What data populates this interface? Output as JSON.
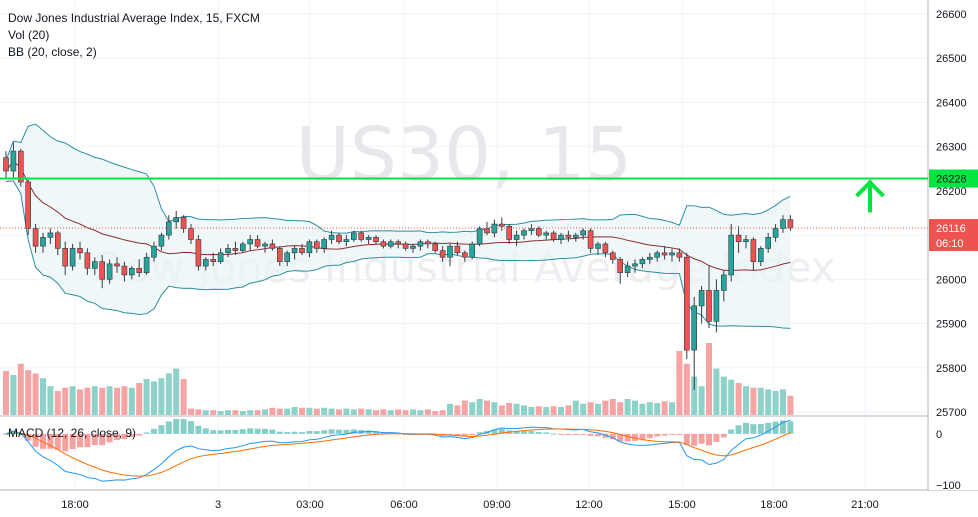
{
  "legend": {
    "title": "Dow Jones Industrial Average Index, 15, FXCM",
    "vol": "Vol (20)",
    "bb": "BB (20, close, 2)",
    "macd": "MACD (12, 26, close, 9)"
  },
  "watermark": {
    "symbol": "US30, 15",
    "name": "Dow Jones Industrial Average Index"
  },
  "colors": {
    "up": "#26a69a",
    "down": "#ef5350",
    "hline": "#00e640",
    "bb_band": "#2b8fa0",
    "bb_mid": "#8b2d2d",
    "bb_fill": "#e8f4f5",
    "vol_up": "#8ed1c8",
    "vol_down": "#f5a3a3",
    "macd_line": "#2196f3",
    "signal_line": "#ff6d00",
    "arrow": "#00e640"
  },
  "chart_data": {
    "type": "candlestick",
    "yaxis": {
      "ticks": [
        "26600",
        "26500",
        "26400",
        "26300",
        "26200",
        "26100",
        "26000",
        "25900",
        "25800",
        "25700"
      ],
      "range": [
        25680,
        26630
      ]
    },
    "macd_axis": {
      "ticks": [
        "0",
        "−100"
      ],
      "range": [
        -110,
        35
      ]
    },
    "xaxis": {
      "ticks": [
        "18:00",
        "3",
        "03:00",
        "06:00",
        "09:00",
        "12:00",
        "15:00",
        "18:00",
        "21:00"
      ]
    },
    "hline": {
      "value": 26228,
      "label": "26228"
    },
    "last_price": {
      "value": 26116,
      "label": "26116",
      "countdown": "06:10"
    },
    "candles": [
      [
        26275,
        26290,
        26230,
        26245
      ],
      [
        26245,
        26310,
        26230,
        26290
      ],
      [
        26290,
        26295,
        26210,
        26220
      ],
      [
        26220,
        26225,
        26100,
        26115
      ],
      [
        26115,
        26125,
        26060,
        26075
      ],
      [
        26075,
        26105,
        26060,
        26095
      ],
      [
        26095,
        26115,
        26080,
        26105
      ],
      [
        26105,
        26110,
        26055,
        26070
      ],
      [
        26070,
        26085,
        26010,
        26030
      ],
      [
        26030,
        26080,
        26020,
        26070
      ],
      [
        26070,
        26085,
        26045,
        26060
      ],
      [
        26060,
        26070,
        26010,
        26025
      ],
      [
        26025,
        26050,
        26010,
        26040
      ],
      [
        26040,
        26055,
        25980,
        26000
      ],
      [
        26000,
        26045,
        25990,
        26035
      ],
      [
        26035,
        26050,
        26015,
        26030
      ],
      [
        26030,
        26040,
        25995,
        26010
      ],
      [
        26010,
        26030,
        26000,
        26025
      ],
      [
        26025,
        26045,
        26005,
        26015
      ],
      [
        26015,
        26060,
        26010,
        26050
      ],
      [
        26050,
        26085,
        26040,
        26075
      ],
      [
        26075,
        26105,
        26065,
        26100
      ],
      [
        26100,
        26145,
        26090,
        26130
      ],
      [
        26130,
        26155,
        26115,
        26140
      ],
      [
        26140,
        26145,
        26105,
        26115
      ],
      [
        26115,
        26125,
        26080,
        26090
      ],
      [
        26090,
        26100,
        26020,
        26030
      ],
      [
        26030,
        26050,
        26020,
        26045
      ],
      [
        26045,
        26060,
        26030,
        26040
      ],
      [
        26040,
        26070,
        26035,
        26060
      ],
      [
        26060,
        26080,
        26050,
        26070
      ],
      [
        26070,
        26085,
        26055,
        26065
      ],
      [
        26065,
        26085,
        26060,
        26080
      ],
      [
        26080,
        26100,
        26065,
        26090
      ],
      [
        26090,
        26100,
        26070,
        26075
      ],
      [
        26075,
        26085,
        26060,
        26080
      ],
      [
        26080,
        26090,
        26065,
        26070
      ],
      [
        26070,
        26075,
        26030,
        26040
      ],
      [
        26040,
        26065,
        26030,
        26060
      ],
      [
        26060,
        26075,
        26045,
        26070
      ],
      [
        26070,
        26080,
        26055,
        26060
      ],
      [
        26060,
        26090,
        26050,
        26085
      ],
      [
        26085,
        26090,
        26060,
        26070
      ],
      [
        26070,
        26095,
        26060,
        26090
      ],
      [
        26090,
        26110,
        26080,
        26100
      ],
      [
        26100,
        26105,
        26080,
        26085
      ],
      [
        26085,
        26100,
        26075,
        26090
      ],
      [
        26090,
        26110,
        26085,
        26105
      ],
      [
        26105,
        26110,
        26085,
        26090
      ],
      [
        26090,
        26100,
        26080,
        26095
      ],
      [
        26095,
        26100,
        26080,
        26085
      ],
      [
        26085,
        26090,
        26070,
        26075
      ],
      [
        26075,
        26090,
        26070,
        26085
      ],
      [
        26085,
        26090,
        26070,
        26080
      ],
      [
        26080,
        26085,
        26065,
        26070
      ],
      [
        26070,
        26080,
        26060,
        26075
      ],
      [
        26075,
        26090,
        26065,
        26085
      ],
      [
        26085,
        26090,
        26070,
        26080
      ],
      [
        26080,
        26085,
        26060,
        26065
      ],
      [
        26065,
        26075,
        26040,
        26050
      ],
      [
        26050,
        26080,
        26030,
        26075
      ],
      [
        26075,
        26085,
        26055,
        26060
      ],
      [
        26060,
        26065,
        26040,
        26050
      ],
      [
        26050,
        26085,
        26045,
        26080
      ],
      [
        26080,
        26120,
        26075,
        26115
      ],
      [
        26115,
        26130,
        26100,
        26105
      ],
      [
        26105,
        26135,
        26095,
        26125
      ],
      [
        26125,
        26140,
        26110,
        26120
      ],
      [
        26120,
        26125,
        26080,
        26090
      ],
      [
        26090,
        26110,
        26075,
        26100
      ],
      [
        26100,
        26115,
        26090,
        26110
      ],
      [
        26110,
        26125,
        26100,
        26115
      ],
      [
        26115,
        26120,
        26095,
        26100
      ],
      [
        26100,
        26110,
        26090,
        26105
      ],
      [
        26105,
        26110,
        26085,
        26090
      ],
      [
        26090,
        26105,
        26080,
        26100
      ],
      [
        26100,
        26110,
        26085,
        26095
      ],
      [
        26095,
        26105,
        26085,
        26100
      ],
      [
        26100,
        26115,
        26090,
        26110
      ],
      [
        26110,
        26115,
        26060,
        26070
      ],
      [
        26070,
        26085,
        26055,
        26080
      ],
      [
        26080,
        26085,
        26050,
        26060
      ],
      [
        26060,
        26065,
        26035,
        26045
      ],
      [
        26045,
        26050,
        25990,
        26015
      ],
      [
        26015,
        26040,
        26005,
        26030
      ],
      [
        26030,
        26045,
        26015,
        26035
      ],
      [
        26035,
        26050,
        26025,
        26045
      ],
      [
        26045,
        26060,
        26035,
        26050
      ],
      [
        26050,
        26065,
        26040,
        26060
      ],
      [
        26060,
        26075,
        26045,
        26055
      ],
      [
        26055,
        26070,
        26040,
        26060
      ],
      [
        26060,
        26070,
        26040,
        26050
      ],
      [
        26050,
        26060,
        25820,
        25840
      ],
      [
        25840,
        25960,
        25750,
        25940
      ],
      [
        25940,
        25985,
        25900,
        25975
      ],
      [
        25975,
        26030,
        25890,
        25905
      ],
      [
        25905,
        26000,
        25880,
        25975
      ],
      [
        25975,
        26020,
        25950,
        26010
      ],
      [
        26010,
        26125,
        25995,
        26100
      ],
      [
        26100,
        26120,
        26060,
        26085
      ],
      [
        26085,
        26100,
        26070,
        26090
      ],
      [
        26090,
        26095,
        26020,
        26040
      ],
      [
        26040,
        26075,
        26030,
        26070
      ],
      [
        26070,
        26105,
        26060,
        26095
      ],
      [
        26095,
        26125,
        26085,
        26115
      ],
      [
        26115,
        26145,
        26105,
        26135
      ],
      [
        26135,
        26145,
        26110,
        26116
      ]
    ],
    "volume": [
      0.55,
      0.5,
      0.64,
      0.56,
      0.52,
      0.46,
      0.36,
      0.3,
      0.34,
      0.36,
      0.32,
      0.34,
      0.36,
      0.34,
      0.36,
      0.34,
      0.36,
      0.34,
      0.4,
      0.45,
      0.42,
      0.46,
      0.52,
      0.58,
      0.45,
      0.08,
      0.07,
      0.06,
      0.06,
      0.05,
      0.06,
      0.06,
      0.05,
      0.06,
      0.06,
      0.07,
      0.09,
      0.08,
      0.08,
      0.1,
      0.09,
      0.09,
      0.08,
      0.09,
      0.08,
      0.07,
      0.08,
      0.07,
      0.08,
      0.07,
      0.06,
      0.07,
      0.06,
      0.07,
      0.06,
      0.07,
      0.06,
      0.07,
      0.05,
      0.06,
      0.14,
      0.12,
      0.18,
      0.16,
      0.2,
      0.18,
      0.16,
      0.12,
      0.15,
      0.14,
      0.12,
      0.1,
      0.11,
      0.1,
      0.11,
      0.1,
      0.12,
      0.18,
      0.14,
      0.16,
      0.14,
      0.18,
      0.2,
      0.16,
      0.2,
      0.18,
      0.14,
      0.16,
      0.15,
      0.17,
      0.16,
      0.8,
      0.64,
      0.48,
      0.36,
      0.9,
      0.58,
      0.48,
      0.44,
      0.4,
      0.36,
      0.34,
      0.34,
      0.32,
      0.3,
      0.32,
      0.24
    ]
  }
}
